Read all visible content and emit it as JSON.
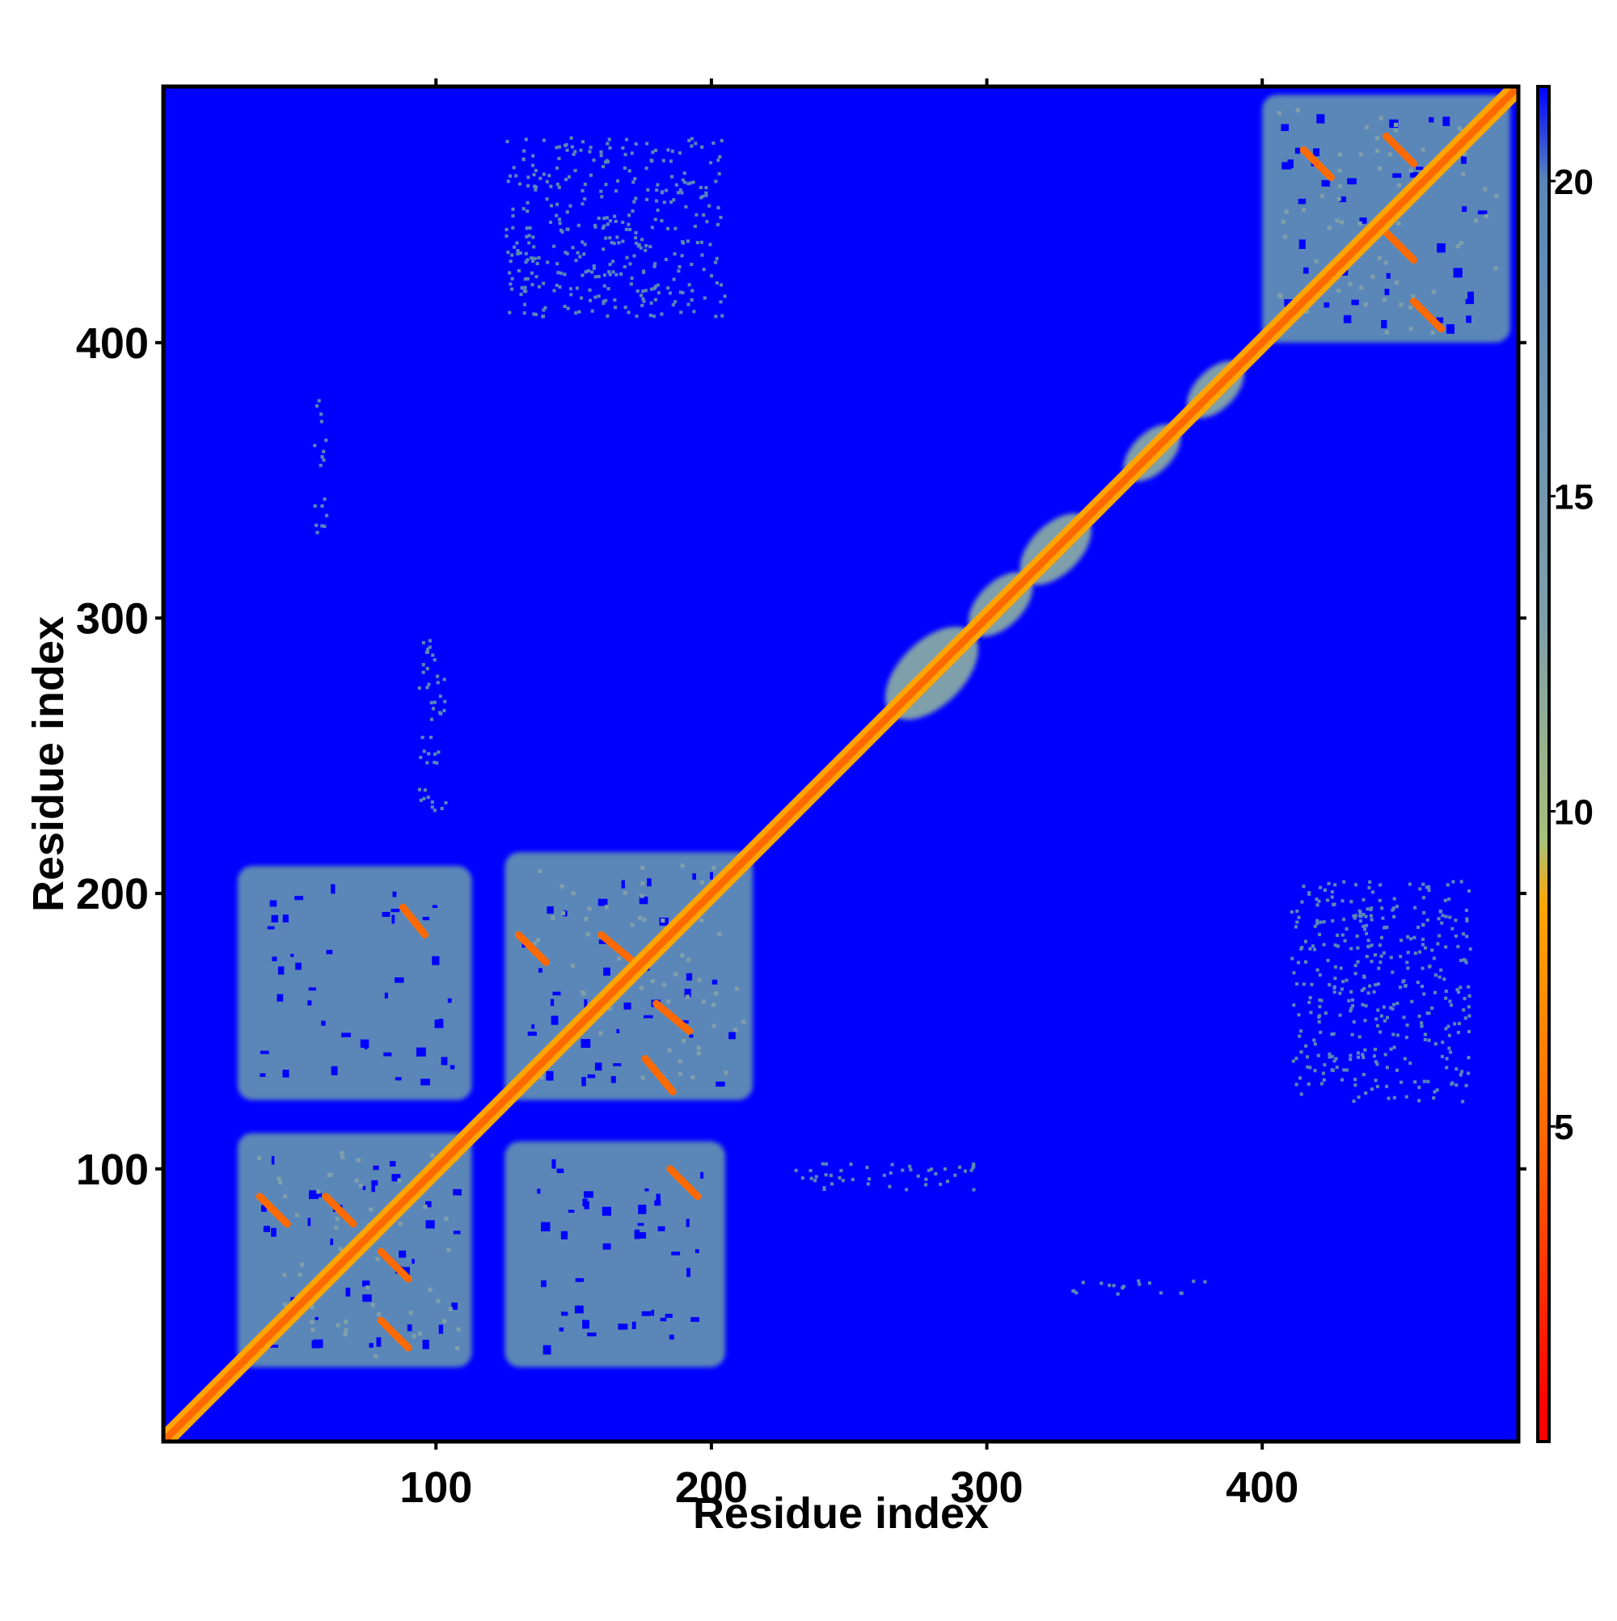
{
  "chart_data": {
    "type": "heatmap",
    "title": "",
    "xlabel": "Residue index",
    "ylabel": "Residue index",
    "xlim": [
      1,
      493
    ],
    "ylim": [
      1,
      493
    ],
    "x_ticks": [
      100,
      200,
      300,
      400
    ],
    "y_ticks": [
      100,
      200,
      300,
      400
    ],
    "grid": false,
    "colorbar": {
      "range": [
        0,
        21.5
      ],
      "ticks": [
        5,
        10,
        15,
        20
      ],
      "colors": {
        "low": "#ff0000",
        "mid_low": "#ff8c00",
        "mid": "#a9c07a",
        "mid_high": "#5a87b8",
        "high": "#0000ff"
      },
      "stops": [
        {
          "value": 0.5,
          "color": "#ff0000"
        },
        {
          "value": 5.0,
          "color": "#ff6a00"
        },
        {
          "value": 8.5,
          "color": "#ffa500"
        },
        {
          "value": 9.5,
          "color": "#a9c07a"
        },
        {
          "value": 13.0,
          "color": "#7f9faa"
        },
        {
          "value": 20.0,
          "color": "#5a87b8"
        },
        {
          "value": 21.5,
          "color": "#0000ff"
        }
      ]
    },
    "background_value": 21.5,
    "diagonal": {
      "from": 1,
      "to": 493,
      "value": 0.5,
      "halo_value": 6.0
    },
    "blocks": [
      {
        "name": "domain-1",
        "x": [
          28,
          113
        ],
        "y": [
          28,
          113
        ],
        "value": 15
      },
      {
        "name": "domain-2",
        "x": [
          125,
          215
        ],
        "y": [
          125,
          215
        ],
        "value": 15
      },
      {
        "name": "domain-1-2",
        "x": [
          28,
          113
        ],
        "y": [
          125,
          210
        ],
        "value": 18
      },
      {
        "name": "domain-2-1",
        "x": [
          125,
          205
        ],
        "y": [
          28,
          110
        ],
        "value": 18
      },
      {
        "name": "domain-3",
        "x": [
          400,
          490
        ],
        "y": [
          400,
          490
        ],
        "value": 15
      }
    ],
    "local_blobs": [
      {
        "center": 280,
        "radius": 13,
        "value": 12
      },
      {
        "center": 305,
        "radius": 9,
        "value": 12
      },
      {
        "center": 325,
        "radius": 10,
        "value": 12
      },
      {
        "center": 360,
        "radius": 8,
        "value": 12
      },
      {
        "center": 383,
        "radius": 8,
        "value": 12
      }
    ],
    "contact_lines": [
      {
        "x": [
          36,
          46
        ],
        "y": [
          90,
          80
        ],
        "value": 3
      },
      {
        "x": [
          60,
          70
        ],
        "y": [
          90,
          80
        ],
        "value": 3
      },
      {
        "x": [
          80,
          90
        ],
        "y": [
          70,
          60
        ],
        "value": 3
      },
      {
        "x": [
          80,
          90
        ],
        "y": [
          45,
          35
        ],
        "value": 3
      },
      {
        "x": [
          130,
          140
        ],
        "y": [
          185,
          175
        ],
        "value": 3
      },
      {
        "x": [
          160,
          172
        ],
        "y": [
          185,
          175
        ],
        "value": 3
      },
      {
        "x": [
          180,
          192
        ],
        "y": [
          160,
          150
        ],
        "value": 3
      },
      {
        "x": [
          176,
          186
        ],
        "y": [
          140,
          128
        ],
        "value": 3
      },
      {
        "x": [
          88,
          96
        ],
        "y": [
          195,
          185
        ],
        "value": 3
      },
      {
        "x": [
          185,
          195
        ],
        "y": [
          100,
          90
        ],
        "value": 3
      },
      {
        "x": [
          415,
          425
        ],
        "y": [
          470,
          460
        ],
        "value": 3
      },
      {
        "x": [
          445,
          455
        ],
        "y": [
          475,
          465
        ],
        "value": 3
      },
      {
        "x": [
          445,
          455
        ],
        "y": [
          440,
          430
        ],
        "value": 3
      },
      {
        "x": [
          455,
          465
        ],
        "y": [
          415,
          405
        ],
        "value": 3
      }
    ],
    "sparse_patches": [
      {
        "x": [
          125,
          205
        ],
        "y": [
          410,
          475
        ],
        "value": 19
      },
      {
        "x": [
          410,
          475
        ],
        "y": [
          125,
          205
        ],
        "value": 19
      },
      {
        "x": [
          93,
          103
        ],
        "y": [
          230,
          295
        ],
        "value": 19
      },
      {
        "x": [
          230,
          295
        ],
        "y": [
          93,
          103
        ],
        "value": 19
      },
      {
        "x": [
          330,
          380
        ],
        "y": [
          55,
          60
        ],
        "value": 19
      },
      {
        "x": [
          55,
          60
        ],
        "y": [
          330,
          380
        ],
        "value": 19
      }
    ]
  }
}
